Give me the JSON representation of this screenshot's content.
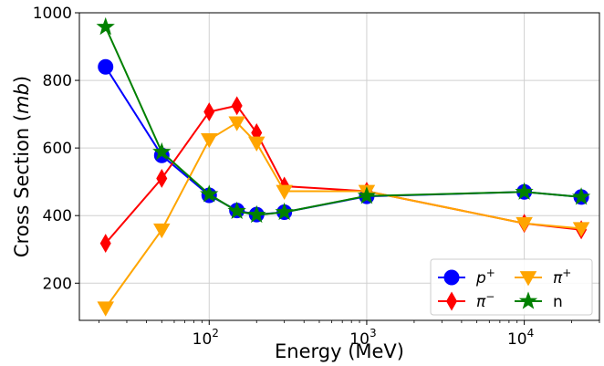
{
  "chart_data": {
    "type": "line",
    "xscale": "log",
    "xlabel": "Energy  (MeV)",
    "ylabel_main": "Cross Section  (",
    "ylabel_unit": "mb",
    "ylabel_close": ")",
    "xlim": [
      15,
      30000
    ],
    "ylim": [
      90,
      1000
    ],
    "x_ticks": [
      {
        "value": 100,
        "base": "10",
        "exp": "2"
      },
      {
        "value": 1000,
        "base": "10",
        "exp": "3"
      },
      {
        "value": 10000,
        "base": "10",
        "exp": "4"
      }
    ],
    "y_ticks": [
      200,
      400,
      600,
      800,
      1000
    ],
    "grid": true,
    "legend_position": "lower-right",
    "series": [
      {
        "name": "p+",
        "label_base": "p",
        "label_sup": "+",
        "color": "#0000ff",
        "marker": "circle",
        "x": [
          22,
          50,
          100,
          150,
          200,
          300,
          1000,
          10000,
          23000
        ],
        "y": [
          840,
          578,
          460,
          415,
          403,
          410,
          457,
          470,
          455
        ]
      },
      {
        "name": "π−",
        "label_base": "π",
        "label_sup": "−",
        "color": "#ff0000",
        "marker": "diamond",
        "x": [
          22,
          50,
          100,
          150,
          200,
          300,
          1000,
          10000,
          23000
        ],
        "y": [
          318,
          510,
          707,
          725,
          645,
          487,
          472,
          377,
          358
        ]
      },
      {
        "name": "π+",
        "label_base": "π",
        "label_sup": "+",
        "color": "#ffa500",
        "marker": "triangle-down",
        "x": [
          22,
          50,
          100,
          150,
          200,
          300,
          1000,
          10000,
          23000
        ],
        "y": [
          127,
          358,
          625,
          675,
          615,
          472,
          472,
          377,
          362
        ]
      },
      {
        "name": "n",
        "label_base": "n",
        "label_sup": "",
        "color": "#008000",
        "marker": "star",
        "x": [
          22,
          50,
          100,
          150,
          200,
          300,
          1000,
          10000,
          23000
        ],
        "y": [
          958,
          588,
          463,
          413,
          402,
          410,
          458,
          470,
          455
        ]
      }
    ]
  }
}
